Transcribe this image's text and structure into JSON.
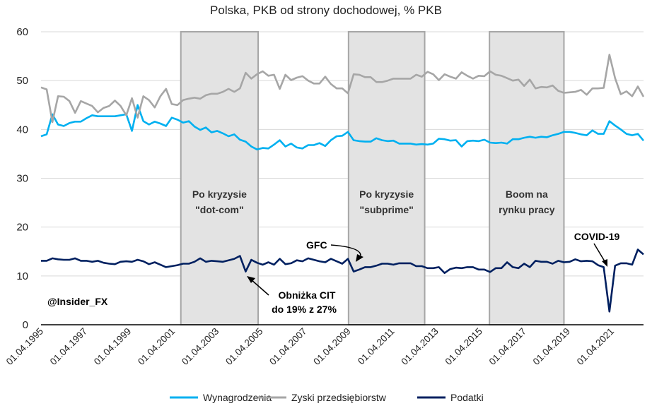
{
  "chart_data": {
    "type": "line",
    "title": "Polska, PKB od strony dochodowej, % PKB",
    "xlabel": "",
    "ylabel": "",
    "ylim": [
      0,
      60
    ],
    "yticks": [
      0,
      10,
      20,
      30,
      40,
      50,
      60
    ],
    "x_frequency": "quarterly",
    "x_start": "01.04.1995",
    "xtick_labels": [
      "01.04.1995",
      "01.04.1997",
      "01.04.1999",
      "01.04.2001",
      "01.04.2003",
      "01.04.2005",
      "01.04.2007",
      "01.04.2009",
      "01.04.2011",
      "01.04.2013",
      "01.04.2015",
      "01.04.2017",
      "01.04.2019",
      "01.04.2021"
    ],
    "xtick_step_quarters": 8,
    "grid": true,
    "legend_position": "bottom",
    "series": [
      {
        "name": "Wynagrodzenia",
        "color": "#00B0F0",
        "values": [
          38.6,
          39.0,
          43.1,
          41.0,
          40.7,
          41.3,
          41.6,
          41.6,
          42.3,
          42.9,
          42.7,
          42.7,
          42.7,
          42.7,
          42.9,
          43.1,
          39.7,
          45.0,
          41.7,
          41.0,
          41.6,
          41.2,
          40.7,
          42.4,
          42.0,
          41.4,
          41.7,
          40.6,
          39.9,
          40.4,
          39.4,
          39.7,
          39.2,
          38.6,
          39.0,
          37.9,
          37.5,
          36.5,
          35.9,
          36.2,
          36.1,
          36.9,
          37.8,
          36.5,
          37.1,
          36.3,
          36.1,
          36.8,
          36.8,
          37.2,
          36.6,
          37.8,
          38.6,
          38.7,
          39.5,
          37.8,
          37.6,
          37.5,
          37.5,
          38.2,
          37.8,
          37.6,
          37.7,
          37.1,
          37.1,
          37.1,
          36.9,
          37.0,
          36.9,
          37.1,
          38.1,
          38.0,
          37.7,
          37.8,
          36.5,
          37.6,
          37.7,
          37.6,
          37.9,
          37.3,
          37.2,
          37.3,
          37.1,
          38.0,
          38.0,
          38.3,
          38.5,
          38.3,
          38.5,
          38.4,
          38.8,
          39.1,
          39.5,
          39.5,
          39.3,
          39.0,
          38.8,
          39.8,
          39.1,
          39.1,
          41.7,
          40.8,
          40.0,
          39.1,
          38.8,
          39.1,
          37.7
        ]
      },
      {
        "name": "Zyski przedsiębiorstw",
        "color": "#A6A6A6",
        "values": [
          48.6,
          48.2,
          41.5,
          46.8,
          46.7,
          45.8,
          43.4,
          45.8,
          45.3,
          44.8,
          43.5,
          44.4,
          44.8,
          45.9,
          44.8,
          42.9,
          46.4,
          42.4,
          46.8,
          46.0,
          44.5,
          46.8,
          48.3,
          45.2,
          45.0,
          46.0,
          46.3,
          46.5,
          46.3,
          47.0,
          47.3,
          47.3,
          47.7,
          48.3,
          47.7,
          48.4,
          51.6,
          50.4,
          51.3,
          51.9,
          51.0,
          51.2,
          48.3,
          51.2,
          50.1,
          50.6,
          50.9,
          50.0,
          49.4,
          49.4,
          50.8,
          49.3,
          48.4,
          48.4,
          47.4,
          51.3,
          51.2,
          50.7,
          50.7,
          49.7,
          49.7,
          50.0,
          50.4,
          50.4,
          50.4,
          50.4,
          51.2,
          50.8,
          51.8,
          51.3,
          50.1,
          51.3,
          50.8,
          50.4,
          51.7,
          51.0,
          50.4,
          51.0,
          50.9,
          51.9,
          51.2,
          51.0,
          50.5,
          50.0,
          50.2,
          48.9,
          50.2,
          48.4,
          48.7,
          48.6,
          49.0,
          47.9,
          47.5,
          47.6,
          47.7,
          48.1,
          47.1,
          48.4,
          48.4,
          48.5,
          55.3,
          50.5,
          47.2,
          47.8,
          46.8,
          48.8,
          46.7
        ]
      },
      {
        "name": "Podatki",
        "color": "#002060",
        "values": [
          13.1,
          13.1,
          13.6,
          13.4,
          13.3,
          13.3,
          13.6,
          13.1,
          13.1,
          12.9,
          13.1,
          12.7,
          12.5,
          12.4,
          12.9,
          13.0,
          12.9,
          13.3,
          13.0,
          12.4,
          12.8,
          12.3,
          11.8,
          12.0,
          12.2,
          12.5,
          12.5,
          12.9,
          13.6,
          12.9,
          13.1,
          13.0,
          12.9,
          13.2,
          13.5,
          14.1,
          10.9,
          13.3,
          12.7,
          12.3,
          12.8,
          12.3,
          13.5,
          12.4,
          12.6,
          13.2,
          13.0,
          13.6,
          13.3,
          13.0,
          12.8,
          13.5,
          13.0,
          12.5,
          13.5,
          10.9,
          11.3,
          11.8,
          11.8,
          12.1,
          12.5,
          12.5,
          12.3,
          12.6,
          12.6,
          12.6,
          12.0,
          12.0,
          11.6,
          11.6,
          11.8,
          10.6,
          11.4,
          11.7,
          11.6,
          11.8,
          11.8,
          11.3,
          11.3,
          10.8,
          11.6,
          11.6,
          12.8,
          11.8,
          11.6,
          12.5,
          11.8,
          13.1,
          12.9,
          12.9,
          12.5,
          13.1,
          12.8,
          12.9,
          13.4,
          13.0,
          13.1,
          13.0,
          12.2,
          11.8,
          2.7,
          12.1,
          12.6,
          12.6,
          12.3,
          15.4,
          14.4
        ]
      }
    ],
    "shaded_periods": [
      {
        "label_line1": "Po kryzysie",
        "label_line2": "\"dot-com\"",
        "start_q": 24.6,
        "end_q": 38.2
      },
      {
        "label_line1": "Po kryzysie",
        "label_line2": "\"subprime\"",
        "start_q": 54.1,
        "end_q": 67.5
      },
      {
        "label_line1": "Boom na",
        "label_line2": "rynku pracy",
        "start_q": 78.9,
        "end_q": 92.0
      }
    ],
    "annotations": {
      "gfc": "GFC",
      "cit_line1": "Obniżka CIT",
      "cit_line2": "do 19% z 27%",
      "covid": "COVID-19",
      "watermark": "@Insider_FX"
    }
  }
}
